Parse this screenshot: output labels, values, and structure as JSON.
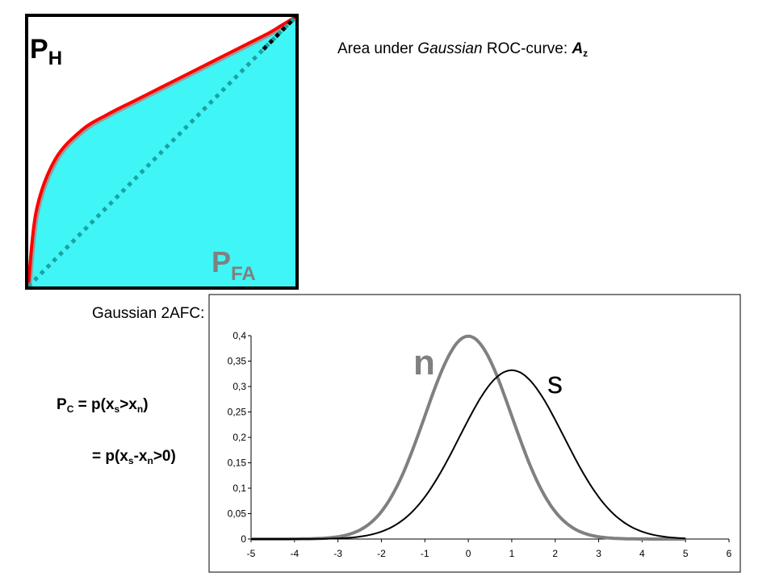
{
  "roc_heading": {
    "prefix": "Area under ",
    "italic": "Gaussian",
    "middle": " ROC-curve:  ",
    "symbol": "A",
    "symbol_sub": "z"
  },
  "afc_heading": "Gaussian 2AFC:",
  "formula": {
    "line1": {
      "p": "P",
      "p_sub": "C",
      "eq": "  = p(x",
      "s_sub": "s",
      "gt": ">x",
      "n_sub": "n",
      "close": ")"
    },
    "line2": {
      "eq": "= p(x",
      "s_sub": "s",
      "minus": "-x",
      "n_sub": "n",
      "close": ">0)"
    }
  },
  "colors": {
    "roc_fill": "#40f5f5",
    "roc_curve": "#ff0000",
    "roc_diagonal": "#1aa3a3",
    "noise_curve": "#808080",
    "signal_curve": "#000000",
    "pfa_label": "#808080"
  },
  "chart_data": [
    {
      "type": "line",
      "subtype": "roc-curve",
      "title": "",
      "xlabel": "P_FA",
      "ylabel": "P_H",
      "x_label_main": "P",
      "x_label_sub": "FA",
      "y_label_main": "P",
      "y_label_sub": "H",
      "xlim": [
        0,
        1
      ],
      "ylim": [
        0,
        1
      ],
      "fill_under_curve": true,
      "grid": false,
      "series": [
        {
          "x": [
            0,
            0.03,
            0.1,
            0.2,
            0.3,
            0.4,
            0.5,
            0.6,
            0.7,
            0.8,
            0.9,
            0.95,
            1.0
          ],
          "y": [
            0,
            0.28,
            0.47,
            0.58,
            0.64,
            0.69,
            0.74,
            0.79,
            0.84,
            0.89,
            0.94,
            0.97,
            1.0
          ]
        },
        {
          "x": [
            0,
            1
          ],
          "y": [
            0,
            1
          ]
        }
      ]
    },
    {
      "type": "line",
      "subtype": "gaussian-densities",
      "title": "",
      "xlim": [
        -5,
        6
      ],
      "ylim": [
        0,
        0.4
      ],
      "x_ticks": [
        "-5",
        "-4",
        "-3",
        "-2",
        "-1",
        "0",
        "1",
        "2",
        "3",
        "4",
        "5",
        "6"
      ],
      "y_ticks": [
        "0",
        "0,05",
        "0,1",
        "0,15",
        "0,2",
        "0,25",
        "0,3",
        "0,35",
        "0,4"
      ],
      "grid": false,
      "series": [
        {
          "name": "n",
          "mean": 0,
          "sd": 1,
          "x_range": [
            -5,
            5
          ],
          "peak": 0.399
        },
        {
          "name": "s",
          "mean": 1,
          "sd": 1.2,
          "x_range": [
            -5,
            5
          ],
          "peak": 0.332
        }
      ]
    }
  ]
}
